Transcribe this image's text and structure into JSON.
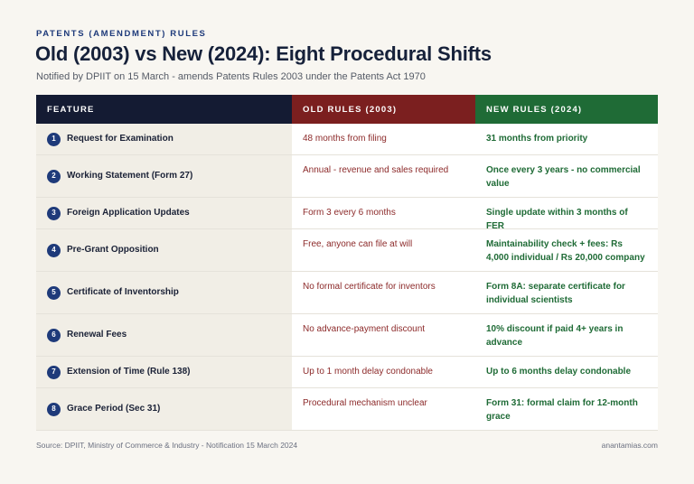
{
  "kicker": "PATENTS (AMENDMENT) RULES",
  "title": "Old (2003) vs New (2024): Eight Procedural Shifts",
  "subtitle": "Notified by DPIIT on 15 March - amends Patents Rules 2003 under the Patents Act 1970",
  "columns": {
    "feature": "FEATURE",
    "old": "OLD RULES (2003)",
    "new": "NEW RULES (2024)"
  },
  "colors": {
    "navy": "#141b33",
    "old_red": "#7b1f1f",
    "new_green": "#1f6b36",
    "badge_blue": "#1e3a7a"
  },
  "rows": [
    {
      "num": "1",
      "feature": "Request for Examination",
      "old": "48 months from filing",
      "new": "31 months from priority"
    },
    {
      "num": "2",
      "feature": "Working Statement (Form 27)",
      "old": "Annual - revenue and sales required",
      "new": "Once every 3 years - no commercial value"
    },
    {
      "num": "3",
      "feature": "Foreign Application Updates",
      "old": "Form 3 every 6 months",
      "new": "Single update within 3 months of FER"
    },
    {
      "num": "4",
      "feature": "Pre-Grant Opposition",
      "old": "Free, anyone can file at will",
      "new": "Maintainability check + fees: Rs 4,000 individual / Rs 20,000 company"
    },
    {
      "num": "5",
      "feature": "Certificate of Inventorship",
      "old": "No formal certificate for inventors",
      "new": "Form 8A: separate certificate for individual scientists"
    },
    {
      "num": "6",
      "feature": "Renewal Fees",
      "old": "No advance-payment discount",
      "new": "10% discount if paid 4+ years in advance"
    },
    {
      "num": "7",
      "feature": "Extension of Time (Rule 138)",
      "old": "Up to 1 month delay condonable",
      "new": "Up to 6 months delay condonable"
    },
    {
      "num": "8",
      "feature": "Grace Period (Sec 31)",
      "old": "Procedural mechanism unclear",
      "new": "Form 31: formal claim for 12-month grace"
    }
  ],
  "footer": {
    "source": "Source: DPIIT, Ministry of Commerce & Industry - Notification 15 March 2024",
    "brand": "anantamias.com"
  }
}
